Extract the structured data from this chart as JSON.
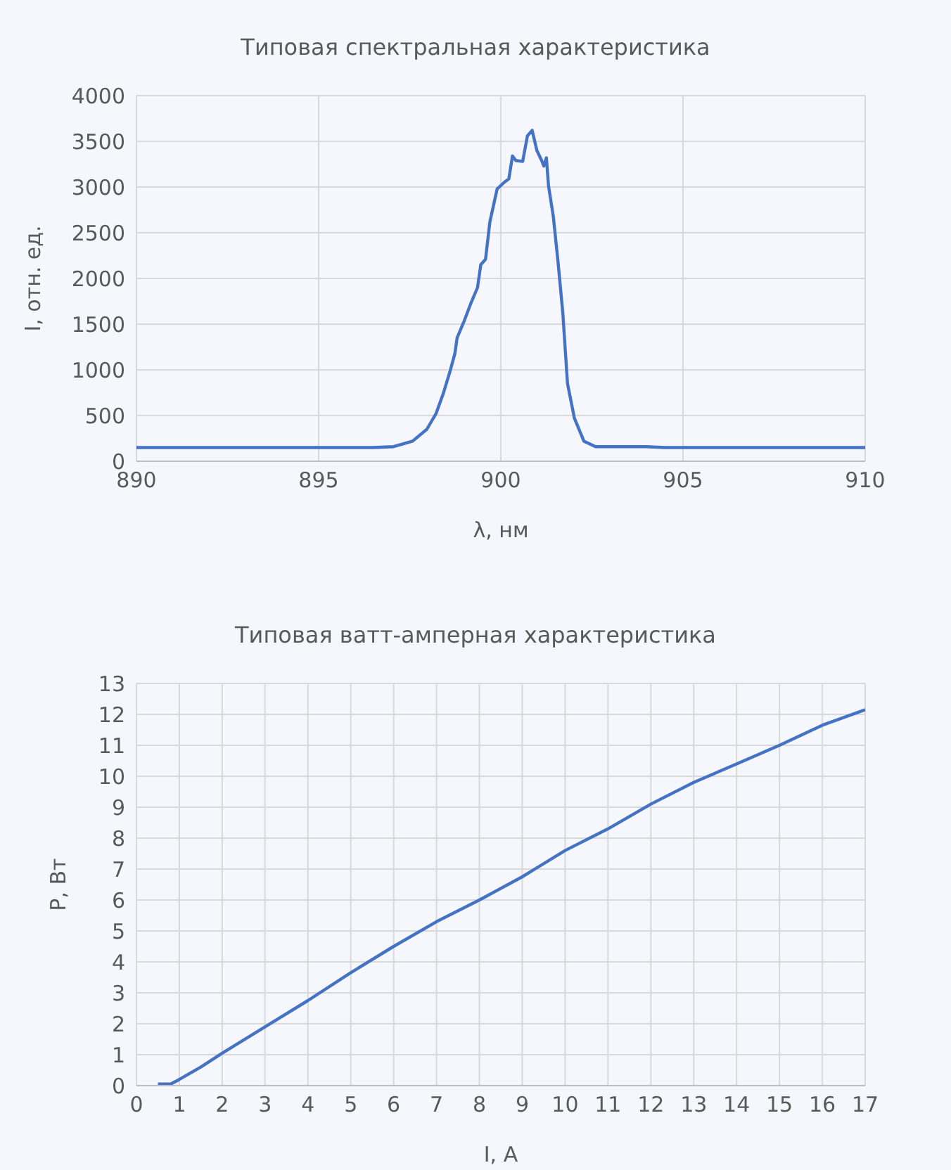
{
  "chart_data": [
    {
      "type": "line",
      "title": "Типовая спектральная характеристика",
      "xlabel": "λ, нм",
      "ylabel": "I, отн. ед.",
      "xlim": [
        890,
        910
      ],
      "xticks": [
        890,
        895,
        900,
        905,
        910
      ],
      "ylim": [
        0,
        4000
      ],
      "yticks": [
        0,
        500,
        1000,
        1500,
        2000,
        2500,
        3000,
        3500,
        4000
      ],
      "grid": true,
      "marker": "none",
      "series": [
        {
          "color": "#4472c4",
          "x": [
            890,
            890.5,
            891,
            891.5,
            892,
            892.5,
            893,
            893.5,
            894,
            894.5,
            895,
            895.5,
            896,
            896.5,
            897.06,
            897.58,
            897.97,
            898.22,
            898.42,
            898.61,
            898.74,
            898.8,
            899.0,
            899.19,
            899.36,
            899.45,
            899.58,
            899.7,
            899.9,
            900.09,
            900.22,
            900.32,
            900.41,
            900.6,
            900.73,
            900.86,
            900.99,
            901.12,
            901.18,
            901.25,
            901.31,
            901.44,
            901.57,
            901.7,
            901.83,
            902.02,
            902.28,
            902.6,
            903,
            903.5,
            903.98,
            904.5,
            905,
            905.5,
            906,
            906.5,
            907,
            907.5,
            908,
            908.5,
            909,
            909.5,
            910
          ],
          "values": [
            150,
            150,
            150,
            150,
            150,
            150,
            150,
            150,
            150,
            150,
            150,
            150,
            150,
            150,
            160,
            220,
            350,
            520,
            740,
            990,
            1180,
            1350,
            1540,
            1740,
            1900,
            2150,
            2210,
            2620,
            2980,
            3050,
            3090,
            3340,
            3290,
            3280,
            3560,
            3620,
            3400,
            3290,
            3230,
            3320,
            3010,
            2680,
            2180,
            1630,
            850,
            470,
            220,
            160,
            160,
            160,
            160,
            150,
            150,
            150,
            150,
            150,
            150,
            150,
            150,
            150,
            150,
            150,
            150
          ]
        }
      ]
    },
    {
      "type": "line",
      "title": "Типовая ватт-амперная характеристика",
      "xlabel": "I, A",
      "ylabel": "P, Вт",
      "xlim": [
        0,
        17
      ],
      "xticks": [
        0,
        1,
        2,
        3,
        4,
        5,
        6,
        7,
        8,
        9,
        10,
        11,
        12,
        13,
        14,
        15,
        16,
        17
      ],
      "ylim": [
        0,
        13
      ],
      "yticks": [
        0,
        1,
        2,
        3,
        4,
        5,
        6,
        7,
        8,
        9,
        10,
        11,
        12,
        13
      ],
      "grid": true,
      "marker": "none",
      "series": [
        {
          "color": "#4472c4",
          "x": [
            0.5,
            0.8,
            1,
            1.5,
            2,
            3,
            4,
            5,
            6,
            7,
            8,
            9,
            10,
            11,
            12,
            13,
            14,
            15,
            16,
            17
          ],
          "values": [
            0.05,
            0.05,
            0.2,
            0.6,
            1.05,
            1.9,
            2.75,
            3.65,
            4.5,
            5.3,
            6.0,
            6.75,
            7.6,
            8.3,
            9.1,
            9.8,
            10.4,
            11.0,
            11.65,
            12.15
          ]
        }
      ]
    }
  ]
}
